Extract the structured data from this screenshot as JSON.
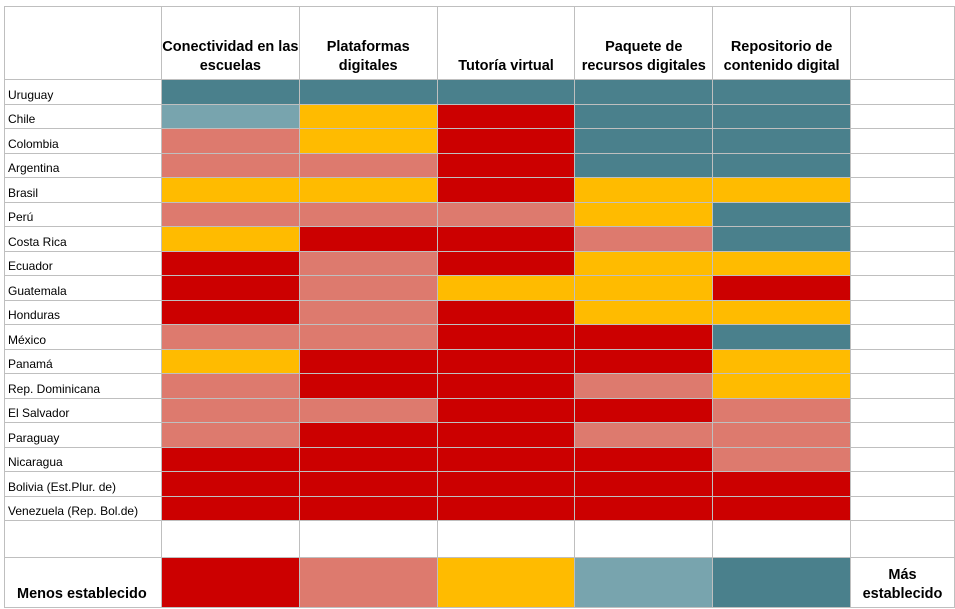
{
  "chart_data": {
    "type": "heatmap",
    "columns": [
      "Conectividad en las escuelas",
      "Plataformas digitales",
      "Tutoría virtual",
      "Paquete de recursos digitales",
      "Repositorio de contenido digital"
    ],
    "scale": {
      "min_label": "Menos establecido",
      "max_label": "Más establecido",
      "levels": [
        1,
        2,
        3,
        4,
        5
      ],
      "colors": [
        "#cc0000",
        "#dd7a6e",
        "#ffbb00",
        "#78a4ae",
        "#4a808c"
      ]
    },
    "rows": [
      {
        "country": "Uruguay",
        "values": [
          5,
          5,
          5,
          5,
          5
        ]
      },
      {
        "country": "Chile",
        "values": [
          4,
          3,
          1,
          5,
          5
        ]
      },
      {
        "country": "Colombia",
        "values": [
          2,
          3,
          1,
          5,
          5
        ]
      },
      {
        "country": "Argentina",
        "values": [
          2,
          2,
          1,
          5,
          5
        ]
      },
      {
        "country": "Brasil",
        "values": [
          3,
          3,
          1,
          3,
          3
        ]
      },
      {
        "country": "Perú",
        "values": [
          2,
          2,
          2,
          3,
          5
        ]
      },
      {
        "country": "Costa Rica",
        "values": [
          3,
          1,
          1,
          2,
          5
        ]
      },
      {
        "country": "Ecuador",
        "values": [
          1,
          2,
          1,
          3,
          3
        ]
      },
      {
        "country": "Guatemala",
        "values": [
          1,
          2,
          3,
          3,
          1
        ]
      },
      {
        "country": "Honduras",
        "values": [
          1,
          2,
          1,
          3,
          3
        ]
      },
      {
        "country": "México",
        "values": [
          2,
          2,
          1,
          1,
          5
        ]
      },
      {
        "country": "Panamá",
        "values": [
          3,
          1,
          1,
          1,
          3
        ]
      },
      {
        "country": "Rep. Dominicana",
        "values": [
          2,
          1,
          1,
          2,
          3
        ]
      },
      {
        "country": "El Salvador",
        "values": [
          2,
          2,
          1,
          1,
          2
        ]
      },
      {
        "country": "Paraguay",
        "values": [
          2,
          1,
          1,
          2,
          2
        ]
      },
      {
        "country": "Nicaragua",
        "values": [
          1,
          1,
          1,
          1,
          2
        ]
      },
      {
        "country": "Bolivia (Est.Plur. de)",
        "values": [
          1,
          1,
          1,
          1,
          1
        ]
      },
      {
        "country": "Venezuela (Rep. Bol.de)",
        "values": [
          1,
          1,
          1,
          1,
          1
        ]
      }
    ]
  }
}
